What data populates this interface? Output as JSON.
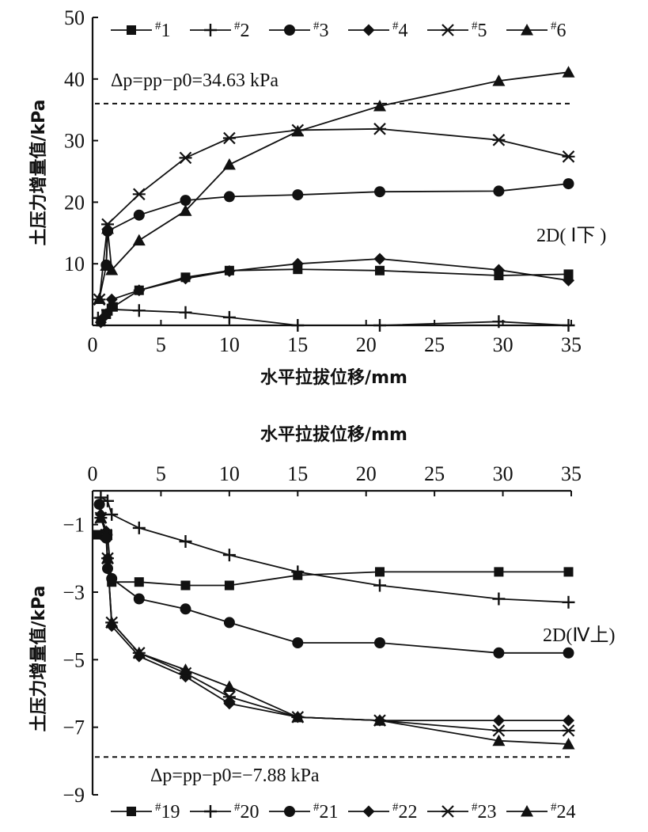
{
  "chart_data": [
    {
      "type": "line",
      "title": "",
      "xlabel": "水平拉拔位移/mm",
      "ylabel": "土压力增量值/kPa",
      "xlim": [
        0,
        35
      ],
      "ylim": [
        0,
        50
      ],
      "xticks": [
        0,
        5,
        10,
        15,
        20,
        25,
        30,
        35
      ],
      "yticks": [
        10,
        20,
        30,
        40,
        50
      ],
      "x_axis_position": "bottom",
      "grid": false,
      "legend_position": "top",
      "annotation": "Δp=pp−p0=34.63 kPa",
      "reference_line": 36,
      "region_label": "2D( Ⅰ下 )",
      "series": [
        {
          "name": "#1",
          "marker": "square",
          "x": [
            0.6,
            1.0,
            1.5,
            3.4,
            6.8,
            10.0,
            15.0,
            21.0,
            29.7,
            34.8
          ],
          "y": [
            0.6,
            1.8,
            3.0,
            5.7,
            7.8,
            8.9,
            9.1,
            8.9,
            8.1,
            8.3
          ]
        },
        {
          "name": "#2",
          "marker": "plus",
          "x": [
            0.4,
            1.1,
            1.4,
            3.4,
            6.8,
            10.0,
            15.0,
            21.0,
            29.7,
            34.8
          ],
          "y": [
            1.2,
            2.5,
            2.6,
            2.4,
            2.1,
            1.3,
            0.0,
            0.0,
            0.6,
            0.0
          ]
        },
        {
          "name": "#3",
          "marker": "circle",
          "x": [
            1.0,
            1.1,
            3.4,
            6.8,
            10.0,
            15.0,
            21.0,
            29.7,
            34.8
          ],
          "y": [
            9.8,
            15.3,
            17.9,
            20.3,
            20.9,
            21.2,
            21.7,
            21.8,
            23.0
          ]
        },
        {
          "name": "#4",
          "marker": "diamond",
          "x": [
            0.6,
            0.9,
            1.4,
            3.4,
            6.8,
            10.0,
            15.0,
            21.0,
            29.7,
            34.8
          ],
          "y": [
            0.5,
            1.5,
            4.2,
            5.7,
            7.6,
            8.8,
            10.0,
            10.8,
            9.0,
            7.3
          ]
        },
        {
          "name": "#5",
          "marker": "star",
          "x": [
            0.5,
            1.1,
            3.4,
            6.8,
            10.0,
            15.0,
            21.0,
            29.7,
            34.8
          ],
          "y": [
            4.2,
            16.4,
            21.3,
            27.2,
            30.4,
            31.7,
            31.9,
            30.1,
            27.4
          ]
        },
        {
          "name": "#6",
          "marker": "triangle",
          "x": [
            0.5,
            1.0,
            1.1,
            1.4,
            3.4,
            6.8,
            10.0,
            15.0,
            21.0,
            29.7,
            34.8
          ],
          "y": [
            4.3,
            9.7,
            15.7,
            9.0,
            13.8,
            18.6,
            26.1,
            31.5,
            35.6,
            39.7,
            41.1
          ]
        }
      ]
    },
    {
      "type": "line",
      "title": "",
      "xlabel": "水平拉拔位移/mm",
      "ylabel": "土压力增量值/kPa",
      "xlim": [
        0,
        35
      ],
      "ylim": [
        -9,
        0
      ],
      "xticks": [
        0,
        5,
        10,
        15,
        20,
        25,
        30,
        35
      ],
      "yticks": [
        -1,
        -3,
        -5,
        -7,
        -9
      ],
      "x_axis_position": "top",
      "grid": false,
      "legend_position": "bottom",
      "annotation": "Δp=pp−p0=−7.88 kPa",
      "reference_line": -7.88,
      "region_label": "2D(Ⅳ上)",
      "series": [
        {
          "name": "#19",
          "marker": "square",
          "x": [
            0.4,
            1.1,
            1.4,
            3.4,
            6.8,
            10.0,
            15.0,
            21.0,
            29.7,
            34.8
          ],
          "y": [
            -1.3,
            -1.3,
            -2.7,
            -2.7,
            -2.8,
            -2.8,
            -2.5,
            -2.4,
            -2.4,
            -2.4
          ]
        },
        {
          "name": "#20",
          "marker": "plus",
          "x": [
            0.6,
            1.1,
            1.4,
            3.4,
            6.8,
            10.0,
            15.0,
            21.0,
            29.7,
            34.8
          ],
          "y": [
            -0.2,
            -0.3,
            -0.7,
            -1.1,
            -1.5,
            -1.9,
            -2.4,
            -2.8,
            -3.2,
            -3.3
          ]
        },
        {
          "name": "#21",
          "marker": "circle",
          "x": [
            0.5,
            1.0,
            1.1,
            1.4,
            3.4,
            6.8,
            10.0,
            15.0,
            21.0,
            29.7,
            34.8
          ],
          "y": [
            -0.4,
            -1.4,
            -2.3,
            -2.6,
            -3.2,
            -3.5,
            -3.9,
            -4.5,
            -4.5,
            -4.8,
            -4.8
          ]
        },
        {
          "name": "#22",
          "marker": "diamond",
          "x": [
            0.6,
            1.0,
            1.1,
            1.4,
            3.4,
            6.8,
            10.0,
            15.0,
            21.0,
            29.7,
            34.8
          ],
          "y": [
            -0.7,
            -1.2,
            -2.0,
            -4.0,
            -4.9,
            -5.5,
            -6.3,
            -6.7,
            -6.8,
            -6.8,
            -6.8
          ]
        },
        {
          "name": "#23",
          "marker": "star",
          "x": [
            0.6,
            1.0,
            1.1,
            1.4,
            3.4,
            6.8,
            10.0,
            15.0,
            21.0,
            29.7,
            34.8
          ],
          "y": [
            -0.8,
            -1.3,
            -2.0,
            -3.9,
            -4.8,
            -5.4,
            -6.1,
            -6.7,
            -6.8,
            -7.1,
            -7.1
          ]
        },
        {
          "name": "#24",
          "marker": "triangle",
          "x": [
            0.6,
            1.0,
            1.1,
            1.4,
            3.4,
            6.8,
            10.0,
            15.0,
            21.0,
            29.7,
            34.8
          ],
          "y": [
            -0.8,
            -1.3,
            -2.0,
            -3.9,
            -4.8,
            -5.3,
            -5.8,
            -6.7,
            -6.8,
            -7.4,
            -7.5
          ]
        }
      ]
    }
  ]
}
